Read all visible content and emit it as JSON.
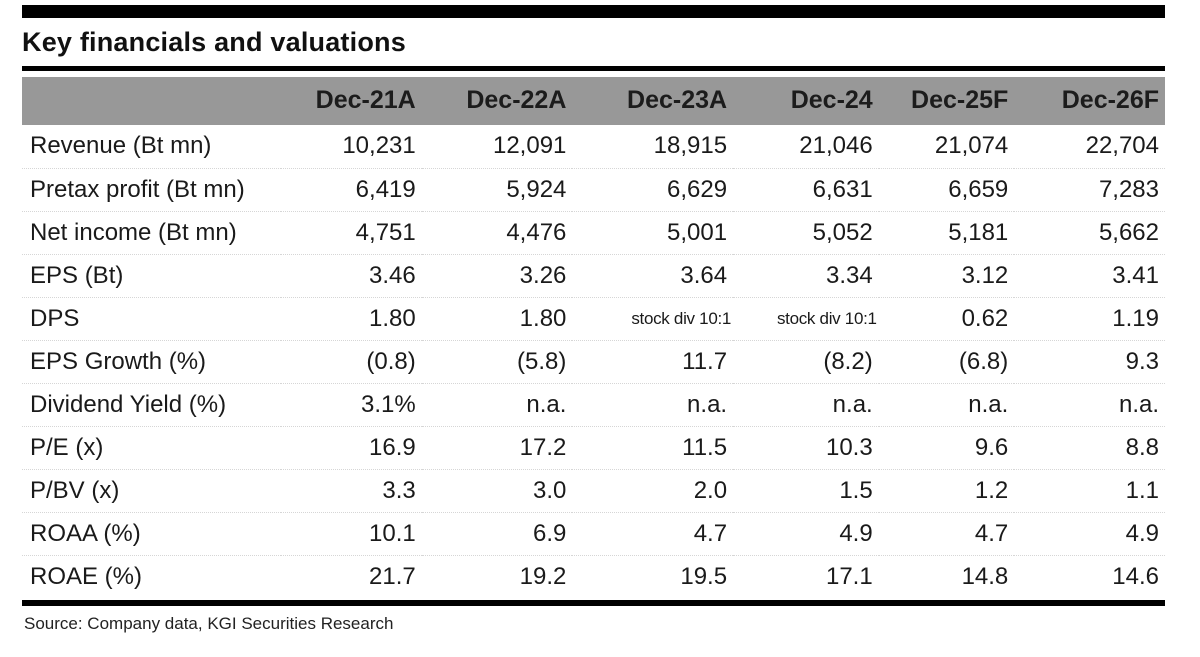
{
  "page": {
    "title": "Key financials and valuations",
    "source": "Source: Company data, KGI Securities Research"
  },
  "table": {
    "corner_label": "",
    "columns": [
      "Dec-21A",
      "Dec-22A",
      "Dec-23A",
      "Dec-24",
      "Dec-25F",
      "Dec-26F"
    ],
    "rows": [
      {
        "label": "Revenue (Bt mn)",
        "values": [
          "10,231",
          "12,091",
          "18,915",
          "21,046",
          "21,074",
          "22,704"
        ]
      },
      {
        "label": "Pretax profit (Bt mn)",
        "values": [
          "6,419",
          "5,924",
          "6,629",
          "6,631",
          "6,659",
          "7,283"
        ]
      },
      {
        "label": "Net income (Bt mn)",
        "values": [
          "4,751",
          "4,476",
          "5,001",
          "5,052",
          "5,181",
          "5,662"
        ]
      },
      {
        "label": "EPS (Bt)",
        "values": [
          "3.46",
          "3.26",
          "3.64",
          "3.34",
          "3.12",
          "3.41"
        ]
      },
      {
        "label": "DPS",
        "values": [
          "1.80",
          "1.80",
          "stock div 10:1",
          "stock div 10:1",
          "0.62",
          "1.19"
        ]
      },
      {
        "label": "EPS Growth (%)",
        "values": [
          "(0.8)",
          "(5.8)",
          "11.7",
          "(8.2)",
          "(6.8)",
          "9.3"
        ]
      },
      {
        "label": "Dividend Yield (%)",
        "values": [
          "3.1%",
          "n.a.",
          "n.a.",
          "n.a.",
          "n.a.",
          "n.a."
        ]
      },
      {
        "label": "P/E (x)",
        "values": [
          "16.9",
          "17.2",
          "11.5",
          "10.3",
          "9.6",
          "8.8"
        ]
      },
      {
        "label": "P/BV (x)",
        "values": [
          "3.3",
          "3.0",
          "2.0",
          "1.5",
          "1.2",
          "1.1"
        ]
      },
      {
        "label": "ROAA (%)",
        "values": [
          "10.1",
          "6.9",
          "4.7",
          "4.9",
          "4.7",
          "4.9"
        ]
      },
      {
        "label": "ROAE (%)",
        "values": [
          "21.7",
          "19.2",
          "19.5",
          "17.1",
          "14.8",
          "14.6"
        ]
      }
    ]
  },
  "colors": {
    "header_band": "#989898",
    "rule": "#000000",
    "text": "#1a1a1a"
  }
}
